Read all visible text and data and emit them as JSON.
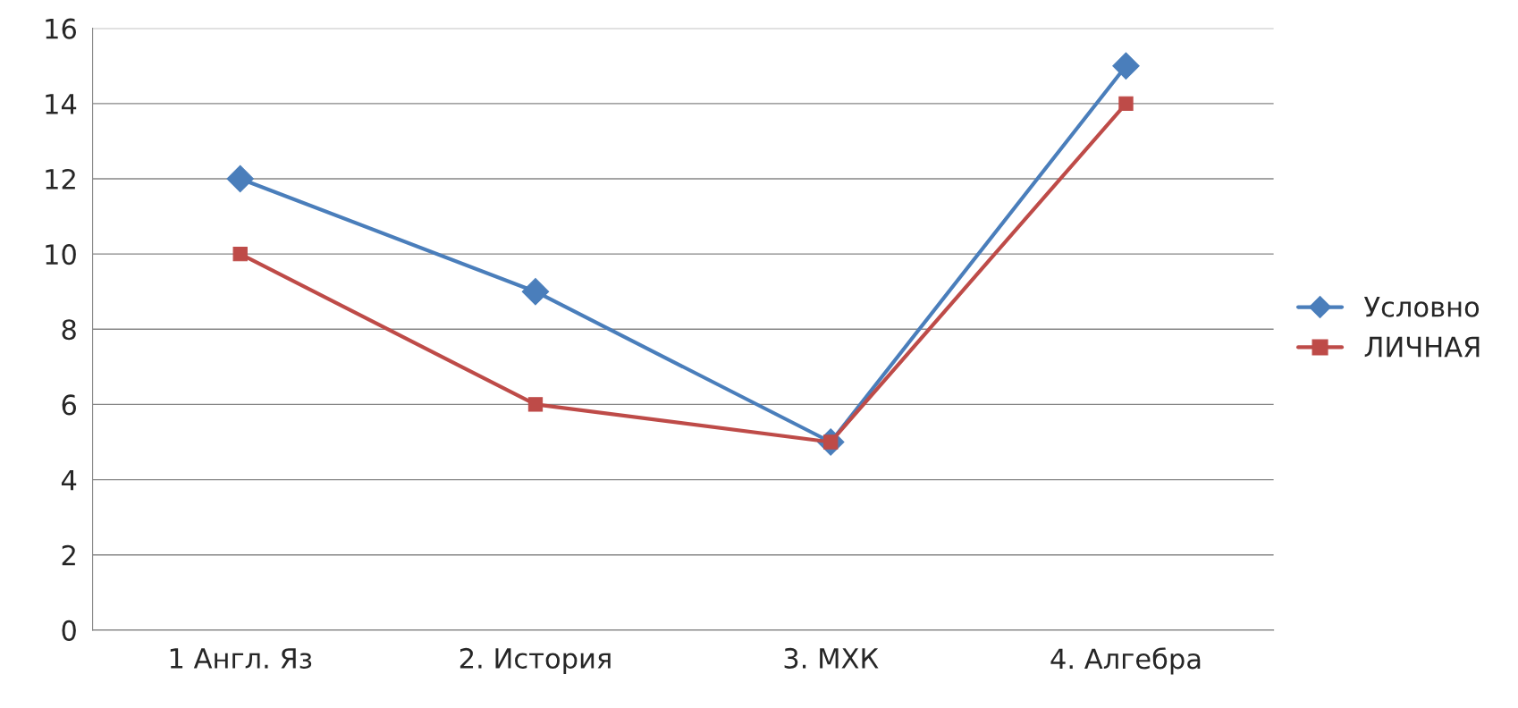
{
  "chart_data": {
    "type": "line",
    "categories": [
      "1 Англ. Яз",
      "2. История",
      "3. МХК",
      "4. Алгебра"
    ],
    "series": [
      {
        "name": "Условно",
        "color": "#4a7ebb",
        "marker": "diamond",
        "values": [
          12,
          9,
          5,
          15
        ]
      },
      {
        "name": "ЛИЧНАЯ",
        "color": "#be4b48",
        "marker": "square",
        "values": [
          10,
          6,
          5,
          14
        ]
      }
    ],
    "ylim": [
      0,
      16
    ],
    "yticks": [
      0,
      2,
      4,
      6,
      8,
      10,
      12,
      14,
      16
    ],
    "grid": "y",
    "legend": "right",
    "line_style": "solid"
  }
}
